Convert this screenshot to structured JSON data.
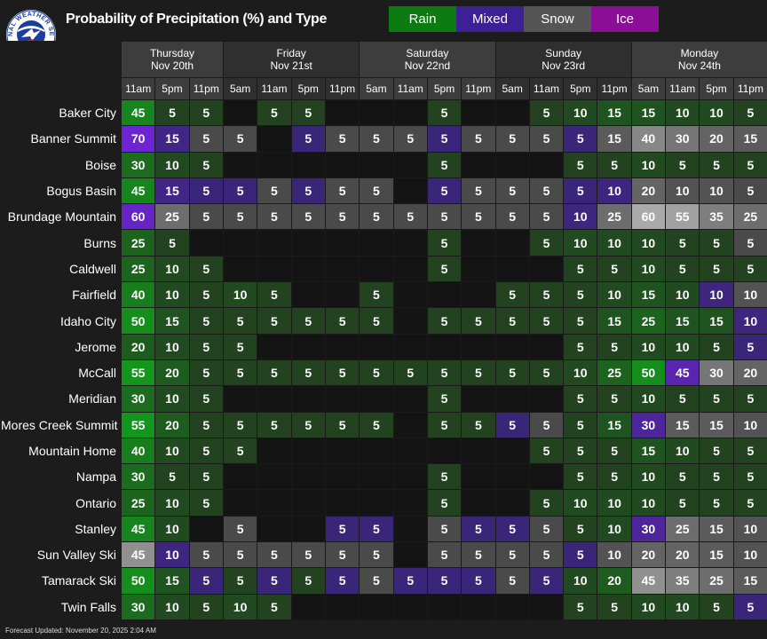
{
  "title": "Probability of Precipitation (%) and Type",
  "logo": {
    "name": "nws-logo",
    "text": "NATIONAL WEATHER SERVICE"
  },
  "legend": [
    {
      "label": "Rain",
      "color": "#0e7a12"
    },
    {
      "label": "Mixed",
      "color": "#3d1f96"
    },
    {
      "label": "Snow",
      "color": "#555555"
    },
    {
      "label": "Ice",
      "color": "#8a0e96"
    }
  ],
  "days": [
    {
      "name": "Thursday",
      "date": "Nov 20th",
      "times": [
        "11am",
        "5pm",
        "11pm"
      ]
    },
    {
      "name": "Friday",
      "date": "Nov 21st",
      "times": [
        "5am",
        "11am",
        "5pm",
        "11pm"
      ]
    },
    {
      "name": "Saturday",
      "date": "Nov 22nd",
      "times": [
        "5am",
        "11am",
        "5pm",
        "11pm"
      ]
    },
    {
      "name": "Sunday",
      "date": "Nov 23rd",
      "times": [
        "5am",
        "11am",
        "5pm",
        "11pm"
      ]
    },
    {
      "name": "Monday",
      "date": "Nov 24th",
      "times": [
        "5am",
        "11am",
        "5pm",
        "11pm"
      ]
    }
  ],
  "rows": [
    {
      "location": "Baker City",
      "values": [
        "45R",
        "5R",
        "5R",
        "",
        "5R",
        "5R",
        "",
        "",
        "",
        "5R",
        "",
        "",
        "5R",
        "10R",
        "15R",
        "15R",
        "10R",
        "10R",
        "5R"
      ]
    },
    {
      "location": "Banner Summit",
      "values": [
        "70M",
        "15M",
        "5S",
        "5S",
        "",
        "5M",
        "5S",
        "5S",
        "5S",
        "5M",
        "5S",
        "5S",
        "5S",
        "5M",
        "15S",
        "40S",
        "30S",
        "20S",
        "15S"
      ]
    },
    {
      "location": "Boise",
      "values": [
        "30R",
        "10R",
        "5R",
        "",
        "",
        "",
        "",
        "",
        "",
        "5R",
        "",
        "",
        "",
        "5R",
        "5R",
        "10R",
        "5R",
        "5R",
        "5R"
      ]
    },
    {
      "location": "Bogus Basin",
      "values": [
        "45R",
        "15M",
        "5M",
        "5M",
        "5S",
        "5M",
        "5S",
        "5S",
        "",
        "5M",
        "5S",
        "5S",
        "5S",
        "5M",
        "10M",
        "20S",
        "10S",
        "10S",
        "5S"
      ]
    },
    {
      "location": "Brundage Mountain",
      "values": [
        "60M",
        "25S",
        "5S",
        "5S",
        "5S",
        "5S",
        "5S",
        "5S",
        "5S",
        "5S",
        "5S",
        "5S",
        "5S",
        "10M",
        "25S",
        "60S",
        "55S",
        "35S",
        "25S"
      ]
    },
    {
      "location": "Burns",
      "values": [
        "25R",
        "5R",
        "",
        "",
        "",
        "",
        "",
        "",
        "",
        "5R",
        "",
        "",
        "5R",
        "10R",
        "10R",
        "10R",
        "5R",
        "5R",
        "5S"
      ]
    },
    {
      "location": "Caldwell",
      "values": [
        "25R",
        "10R",
        "5R",
        "",
        "",
        "",
        "",
        "",
        "",
        "5R",
        "",
        "",
        "",
        "5R",
        "5R",
        "10R",
        "5R",
        "5R",
        "5R"
      ]
    },
    {
      "location": "Fairfield",
      "values": [
        "40R",
        "10R",
        "5R",
        "10R",
        "5R",
        "",
        "",
        "5R",
        "",
        "",
        "",
        "5R",
        "5R",
        "5R",
        "10R",
        "15R",
        "10R",
        "10M",
        "10S"
      ]
    },
    {
      "location": "Idaho City",
      "values": [
        "50R",
        "15R",
        "5R",
        "5R",
        "5R",
        "5R",
        "5R",
        "5R",
        "",
        "5R",
        "5R",
        "5R",
        "5R",
        "5R",
        "15R",
        "25R",
        "15R",
        "15R",
        "10M"
      ]
    },
    {
      "location": "Jerome",
      "values": [
        "20R",
        "10R",
        "5R",
        "5R",
        "",
        "",
        "",
        "",
        "",
        "",
        "",
        "",
        "",
        "5R",
        "5R",
        "10R",
        "10R",
        "5R",
        "5M"
      ]
    },
    {
      "location": "McCall",
      "values": [
        "55R",
        "20R",
        "5R",
        "5R",
        "5R",
        "5R",
        "5R",
        "5R",
        "5R",
        "5R",
        "5R",
        "5R",
        "5R",
        "10R",
        "25R",
        "50R",
        "45M",
        "30S",
        "20S"
      ]
    },
    {
      "location": "Meridian",
      "values": [
        "30R",
        "10R",
        "5R",
        "",
        "",
        "",
        "",
        "",
        "",
        "5R",
        "",
        "",
        "",
        "5R",
        "5R",
        "10R",
        "5R",
        "5R",
        "5R"
      ]
    },
    {
      "location": "Mores Creek Summit",
      "values": [
        "55R",
        "20R",
        "5R",
        "5R",
        "5R",
        "5R",
        "5R",
        "5R",
        "",
        "5R",
        "5R",
        "5M",
        "5S",
        "5R",
        "15R",
        "30M",
        "15S",
        "15S",
        "10S"
      ]
    },
    {
      "location": "Mountain Home",
      "values": [
        "40R",
        "10R",
        "5R",
        "5R",
        "",
        "",
        "",
        "",
        "",
        "",
        "",
        "",
        "5R",
        "5R",
        "5R",
        "15R",
        "10R",
        "5R",
        "5R"
      ]
    },
    {
      "location": "Nampa",
      "values": [
        "30R",
        "5R",
        "5R",
        "",
        "",
        "",
        "",
        "",
        "",
        "5R",
        "",
        "",
        "",
        "5R",
        "5R",
        "10R",
        "5R",
        "5R",
        "5R"
      ]
    },
    {
      "location": "Ontario",
      "values": [
        "25R",
        "10R",
        "5R",
        "",
        "",
        "",
        "",
        "",
        "",
        "5R",
        "",
        "",
        "5R",
        "10R",
        "10R",
        "10R",
        "5R",
        "5R",
        "5R"
      ]
    },
    {
      "location": "Stanley",
      "values": [
        "45R",
        "10R",
        "",
        "5S",
        "",
        "",
        "5M",
        "5M",
        "",
        "5S",
        "5M",
        "5M",
        "5S",
        "5R",
        "10R",
        "30M",
        "25S",
        "15S",
        "10S"
      ]
    },
    {
      "location": "Sun Valley Ski",
      "values": [
        "45S",
        "10M",
        "5S",
        "5S",
        "5S",
        "5S",
        "5S",
        "5S",
        "",
        "5S",
        "5S",
        "5S",
        "5S",
        "5M",
        "10S",
        "20S",
        "20S",
        "15S",
        "10S"
      ]
    },
    {
      "location": "Tamarack Ski",
      "values": [
        "50R",
        "15R",
        "5M",
        "5R",
        "5M",
        "5R",
        "5M",
        "5S",
        "5M",
        "5M",
        "5M",
        "5S",
        "5M",
        "10R",
        "20R",
        "45S",
        "35S",
        "25S",
        "15S"
      ]
    },
    {
      "location": "Twin Falls",
      "values": [
        "30R",
        "10R",
        "5R",
        "10R",
        "5R",
        "",
        "",
        "",
        "",
        "",
        "",
        "",
        "",
        "5R",
        "5R",
        "10R",
        "10R",
        "5R",
        "5M"
      ]
    }
  ],
  "footer": "Forecast Updated:  November 20, 2025 2:04 AM"
}
